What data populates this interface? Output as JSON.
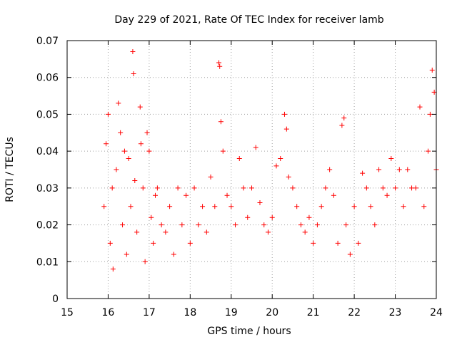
{
  "chart_data": {
    "type": "scatter",
    "title": "Day 229 of 2021, Rate Of TEC Index for receiver lamb",
    "xlabel": "GPS time / hours",
    "ylabel": "ROTI / TECUs",
    "xlim": [
      15,
      24
    ],
    "ylim": [
      0,
      0.07
    ],
    "xticks": [
      "15",
      "16",
      "17",
      "18",
      "19",
      "20",
      "21",
      "22",
      "23",
      "24"
    ],
    "yticks": [
      "0",
      "0.01",
      "0.02",
      "0.03",
      "0.04",
      "0.05",
      "0.06",
      "0.07"
    ],
    "grid": true,
    "marker": "plus",
    "color": "#ff0000",
    "series": [
      {
        "name": "ROTI",
        "x": [
          15.9,
          15.95,
          16.0,
          16.05,
          16.1,
          16.12,
          16.2,
          16.25,
          16.3,
          16.35,
          16.4,
          16.45,
          16.5,
          16.55,
          16.6,
          16.62,
          16.65,
          16.7,
          16.78,
          16.8,
          16.85,
          16.9,
          16.95,
          17.0,
          17.05,
          17.1,
          17.15,
          17.2,
          17.3,
          17.4,
          17.5,
          17.6,
          17.7,
          17.8,
          17.9,
          18.0,
          18.1,
          18.2,
          18.3,
          18.4,
          18.5,
          18.6,
          18.7,
          18.72,
          18.75,
          18.8,
          18.9,
          19.0,
          19.1,
          19.2,
          19.3,
          19.4,
          19.5,
          19.6,
          19.7,
          19.8,
          19.9,
          20.0,
          20.1,
          20.2,
          20.3,
          20.35,
          20.4,
          20.5,
          20.6,
          20.7,
          20.8,
          20.9,
          21.0,
          21.1,
          21.2,
          21.3,
          21.4,
          21.5,
          21.6,
          21.7,
          21.75,
          21.8,
          21.9,
          22.0,
          22.1,
          22.2,
          22.3,
          22.4,
          22.5,
          22.6,
          22.7,
          22.8,
          22.9,
          23.0,
          23.1,
          23.2,
          23.3,
          23.4,
          23.5,
          23.6,
          23.7,
          23.8,
          23.85,
          23.9,
          23.95,
          24.0
        ],
        "y": [
          0.025,
          0.042,
          0.05,
          0.015,
          0.03,
          0.008,
          0.035,
          0.053,
          0.045,
          0.02,
          0.04,
          0.012,
          0.038,
          0.025,
          0.067,
          0.061,
          0.032,
          0.018,
          0.052,
          0.042,
          0.03,
          0.01,
          0.045,
          0.04,
          0.022,
          0.015,
          0.028,
          0.03,
          0.02,
          0.018,
          0.025,
          0.012,
          0.03,
          0.02,
          0.028,
          0.015,
          0.03,
          0.02,
          0.025,
          0.018,
          0.033,
          0.025,
          0.064,
          0.063,
          0.048,
          0.04,
          0.028,
          0.025,
          0.02,
          0.038,
          0.03,
          0.022,
          0.03,
          0.041,
          0.026,
          0.02,
          0.018,
          0.022,
          0.036,
          0.038,
          0.05,
          0.046,
          0.033,
          0.03,
          0.025,
          0.02,
          0.018,
          0.022,
          0.015,
          0.02,
          0.025,
          0.03,
          0.035,
          0.028,
          0.015,
          0.047,
          0.049,
          0.02,
          0.012,
          0.025,
          0.015,
          0.034,
          0.03,
          0.025,
          0.02,
          0.035,
          0.03,
          0.028,
          0.038,
          0.03,
          0.035,
          0.025,
          0.035,
          0.03,
          0.03,
          0.052,
          0.025,
          0.04,
          0.05,
          0.062,
          0.056,
          0.035
        ]
      }
    ]
  }
}
